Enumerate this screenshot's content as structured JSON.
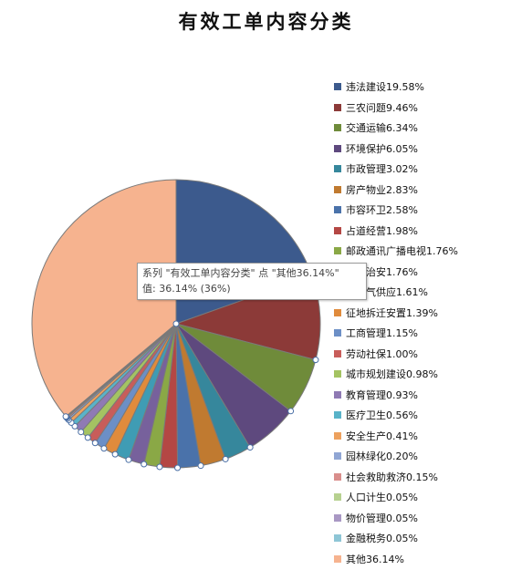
{
  "chart_data": {
    "type": "pie",
    "title": "有效工单内容分类",
    "categories": [
      "违法建设",
      "三农问题",
      "交通运输",
      "环境保护",
      "市政管理",
      "房产物业",
      "市容环卫",
      "占道经营",
      "邮政通讯广播电视",
      "社会治安",
      "水电气供应",
      "征地拆迁安置",
      "工商管理",
      "劳动社保",
      "城市规划建设",
      "教育管理",
      "医疗卫生",
      "安全生产",
      "园林绿化",
      "社会救助救济",
      "人口计生",
      "物价管理",
      "金融税务",
      "其他"
    ],
    "values": [
      19.58,
      9.46,
      6.34,
      6.05,
      3.02,
      2.83,
      2.58,
      1.98,
      1.76,
      1.76,
      1.61,
      1.39,
      1.15,
      1.0,
      0.98,
      0.93,
      0.56,
      0.41,
      0.2,
      0.15,
      0.05,
      0.05,
      0.05,
      36.14
    ],
    "legend": {
      "position": "right",
      "items": [
        "违法建设19.58%",
        "三农问题9.46%",
        "交通运输6.34%",
        "环境保护6.05%",
        "市政管理3.02%",
        "房产物业2.83%",
        "市容环卫2.58%",
        "占道经营1.98%",
        "邮政通讯广播电视1.76%",
        "社会治安1.76%",
        "水电气供应1.61%",
        "征地拆迁安置1.39%",
        "工商管理1.15%",
        "劳动社保1.00%",
        "城市规划建设0.98%",
        "教育管理0.93%",
        "医疗卫生0.56%",
        "安全生产0.41%",
        "园林绿化0.20%",
        "社会救助救济0.15%",
        "人口计生0.05%",
        "物价管理0.05%",
        "金融税务0.05%",
        "其他36.14%"
      ]
    },
    "colors": [
      "#3c5a8d",
      "#8c3a38",
      "#6f8b3a",
      "#5e497e",
      "#36879c",
      "#c07a30",
      "#4a72aa",
      "#b44744",
      "#8aa846",
      "#77619c",
      "#3f9cb4",
      "#e08b3c",
      "#6c8fc6",
      "#c85d5a",
      "#a4c362",
      "#8f7ab4",
      "#59b3c9",
      "#eda15e",
      "#90a6d4",
      "#d98e8c",
      "#b7d190",
      "#a998c4",
      "#8ec6d6",
      "#f6b38f"
    ],
    "selected_slice": "其他"
  },
  "tooltip": {
    "line1": "系列 \"有效工单内容分类\" 点 \"其他36.14%\"",
    "line2": "值: 36.14% (36%)"
  }
}
